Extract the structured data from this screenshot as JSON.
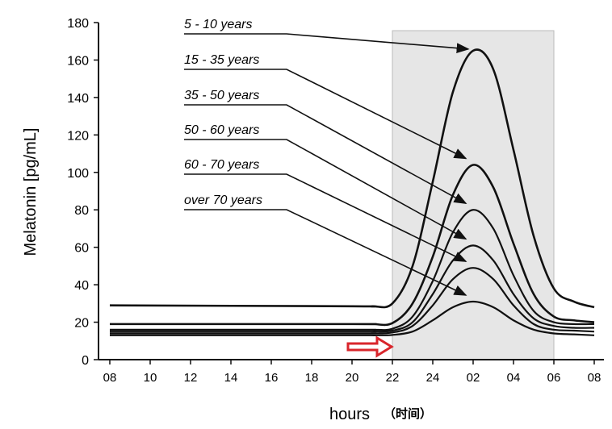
{
  "chart_data": {
    "type": "line",
    "title": "",
    "xlabel": "hours",
    "xlabel_cn": "（时间）",
    "ylabel": "Melatonin [pg/mL]",
    "ylim": [
      0,
      180
    ],
    "yticks": [
      0,
      20,
      40,
      60,
      80,
      100,
      120,
      140,
      160,
      180
    ],
    "xticks": [
      "08",
      "10",
      "12",
      "14",
      "16",
      "18",
      "20",
      "22",
      "24",
      "02",
      "04",
      "06",
      "08"
    ],
    "grid": false,
    "shaded_interval": [
      "22",
      "06"
    ],
    "shade_color": "#e6e6e6",
    "marker_arrow_color": "#d9262c",
    "line_color": "#111111",
    "x": [
      "08",
      "20",
      "21",
      "22",
      "23",
      "24",
      "01",
      "02",
      "03",
      "04",
      "05",
      "06",
      "07",
      "08"
    ],
    "series": [
      {
        "name": "5 - 10 years",
        "values": [
          29,
          28.5,
          28.5,
          30,
          50,
          95,
          143,
          165,
          155,
          112,
          66,
          38,
          31,
          28
        ]
      },
      {
        "name": "15 - 35 years",
        "values": [
          19,
          19,
          19,
          19.5,
          30,
          55,
          88,
          104,
          92,
          62,
          35,
          23,
          21,
          20
        ]
      },
      {
        "name": "35 - 50 years",
        "values": [
          16,
          16,
          16,
          16.5,
          23,
          42,
          68,
          80,
          70,
          45,
          26,
          20,
          19,
          19
        ]
      },
      {
        "name": "50 - 60 years",
        "values": [
          15,
          15,
          15,
          15.5,
          20,
          35,
          53,
          61,
          53,
          35,
          22,
          18,
          17,
          17
        ]
      },
      {
        "name": "60 - 70 years",
        "values": [
          14,
          14,
          14,
          14.5,
          18,
          29,
          43,
          49,
          43,
          29,
          19,
          16,
          15.5,
          15
        ]
      },
      {
        "name": "over 70 years",
        "values": [
          13,
          13,
          13,
          13.2,
          15,
          21,
          28,
          31,
          28,
          21,
          16,
          14,
          13.5,
          13
        ]
      }
    ]
  }
}
